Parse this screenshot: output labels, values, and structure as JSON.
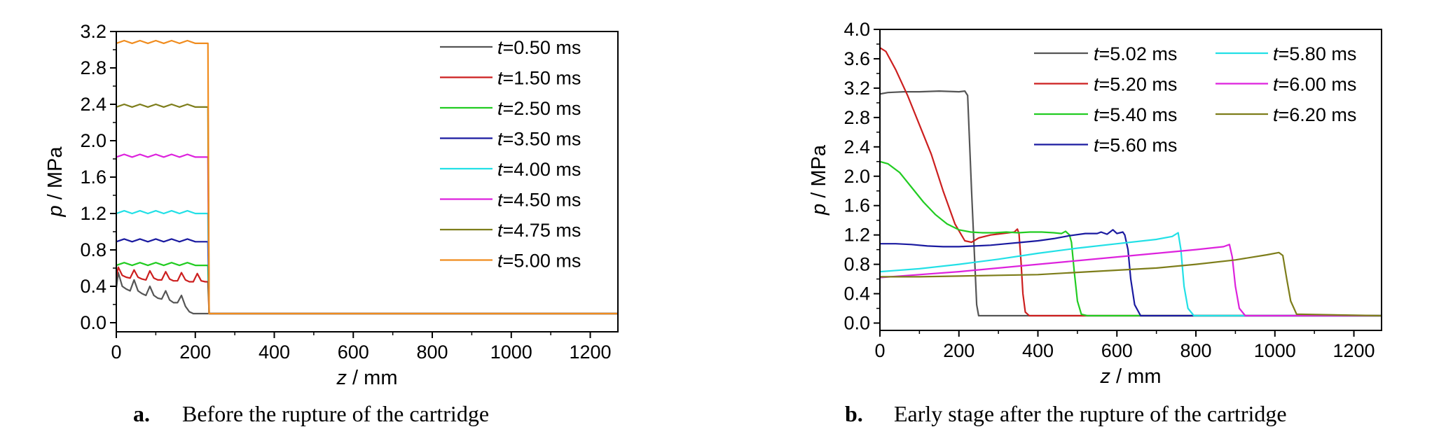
{
  "panels": [
    {
      "letter": "a.",
      "caption": "Before the rupture of the cartridge",
      "chart_data": {
        "type": "line",
        "xlabel": "z / mm",
        "ylabel": "p / MPa",
        "xlim": [
          0,
          1270
        ],
        "ylim": [
          -0.1,
          3.2
        ],
        "xticks": [
          0,
          200,
          400,
          600,
          800,
          1000,
          1200
        ],
        "yticks": [
          "0.0",
          "0.4",
          "0.8",
          "1.2",
          "1.6",
          "2.0",
          "2.4",
          "2.8",
          "3.2"
        ],
        "legend_position": "top-right",
        "legend_columns": 1,
        "series": [
          {
            "name": "t=0.50 ms",
            "color": "#555555",
            "x": [
              0,
              5,
              15,
              25,
              35,
              45,
              55,
              65,
              75,
              85,
              95,
              105,
              115,
              125,
              135,
              145,
              155,
              165,
              175,
              185,
              195,
              205,
              215,
              225,
              232,
              235,
              1270
            ],
            "y": [
              0.38,
              0.55,
              0.4,
              0.37,
              0.35,
              0.47,
              0.35,
              0.32,
              0.3,
              0.4,
              0.3,
              0.27,
              0.26,
              0.35,
              0.25,
              0.22,
              0.22,
              0.3,
              0.18,
              0.12,
              0.1,
              0.1,
              0.1,
              0.1,
              0.1,
              0.1,
              0.1
            ]
          },
          {
            "name": "t=1.50 ms",
            "color": "#cc1f1f",
            "x": [
              0,
              5,
              15,
              25,
              35,
              45,
              55,
              65,
              75,
              85,
              95,
              105,
              115,
              125,
              135,
              145,
              155,
              165,
              175,
              185,
              195,
              205,
              215,
              225,
              232,
              235,
              1270
            ],
            "y": [
              0.5,
              0.61,
              0.52,
              0.5,
              0.49,
              0.58,
              0.5,
              0.48,
              0.47,
              0.57,
              0.49,
              0.47,
              0.47,
              0.56,
              0.48,
              0.46,
              0.46,
              0.55,
              0.47,
              0.45,
              0.45,
              0.54,
              0.46,
              0.45,
              0.45,
              0.1,
              0.1
            ]
          },
          {
            "name": "t=2.50 ms",
            "color": "#22cc22",
            "x": [
              0,
              20,
              40,
              60,
              80,
              100,
              120,
              140,
              160,
              180,
              200,
              232,
              235,
              1270
            ],
            "y": [
              0.63,
              0.66,
              0.63,
              0.66,
              0.63,
              0.66,
              0.63,
              0.66,
              0.63,
              0.66,
              0.63,
              0.63,
              0.1,
              0.1
            ]
          },
          {
            "name": "t=3.50 ms",
            "color": "#1a1aa0",
            "x": [
              0,
              20,
              40,
              60,
              80,
              100,
              120,
              140,
              160,
              180,
              200,
              232,
              235,
              1270
            ],
            "y": [
              0.89,
              0.92,
              0.89,
              0.92,
              0.89,
              0.92,
              0.89,
              0.92,
              0.89,
              0.92,
              0.89,
              0.89,
              0.1,
              0.1
            ]
          },
          {
            "name": "t=4.00 ms",
            "color": "#22e0e6",
            "x": [
              0,
              20,
              40,
              60,
              80,
              100,
              120,
              140,
              160,
              180,
              200,
              232,
              235,
              1270
            ],
            "y": [
              1.2,
              1.23,
              1.2,
              1.23,
              1.2,
              1.23,
              1.2,
              1.23,
              1.2,
              1.23,
              1.2,
              1.2,
              0.1,
              0.1
            ]
          },
          {
            "name": "t=4.50 ms",
            "color": "#dd22dd",
            "x": [
              0,
              20,
              40,
              60,
              80,
              100,
              120,
              140,
              160,
              180,
              200,
              232,
              235,
              1270
            ],
            "y": [
              1.82,
              1.85,
              1.82,
              1.85,
              1.82,
              1.85,
              1.82,
              1.85,
              1.82,
              1.85,
              1.82,
              1.82,
              0.1,
              0.1
            ]
          },
          {
            "name": "t=4.75 ms",
            "color": "#7d7d1a",
            "x": [
              0,
              20,
              40,
              60,
              80,
              100,
              120,
              140,
              160,
              180,
              200,
              232,
              235,
              1270
            ],
            "y": [
              2.37,
              2.4,
              2.37,
              2.4,
              2.37,
              2.4,
              2.37,
              2.4,
              2.37,
              2.4,
              2.37,
              2.37,
              0.1,
              0.1
            ]
          },
          {
            "name": "t=5.00 ms",
            "color": "#f08c1e",
            "x": [
              0,
              20,
              40,
              60,
              80,
              100,
              120,
              140,
              160,
              180,
              200,
              232,
              235,
              1270
            ],
            "y": [
              3.07,
              3.1,
              3.07,
              3.1,
              3.07,
              3.1,
              3.07,
              3.1,
              3.07,
              3.1,
              3.07,
              3.07,
              0.1,
              0.1
            ]
          }
        ]
      }
    },
    {
      "letter": "b.",
      "caption": "Early stage after the rupture of the cartridge",
      "chart_data": {
        "type": "line",
        "xlabel": "z / mm",
        "ylabel": "p / MPa",
        "xlim": [
          0,
          1270
        ],
        "ylim": [
          -0.1,
          4.0
        ],
        "xticks": [
          0,
          200,
          400,
          600,
          800,
          1000,
          1200
        ],
        "yticks": [
          "0.0",
          "0.4",
          "0.8",
          "1.2",
          "1.6",
          "2.0",
          "2.4",
          "2.8",
          "3.2",
          "3.6",
          "4.0"
        ],
        "legend_position": "top-right",
        "legend_columns": 2,
        "series": [
          {
            "name": "t=5.02 ms",
            "color": "#555555",
            "x": [
              0,
              20,
              60,
              100,
              150,
              200,
              215,
              222,
              232,
              245,
              250,
              1270
            ],
            "y": [
              3.12,
              3.14,
              3.15,
              3.15,
              3.16,
              3.15,
              3.16,
              3.1,
              1.8,
              0.25,
              0.1,
              0.1
            ]
          },
          {
            "name": "t=5.20 ms",
            "color": "#cc1f1f",
            "x": [
              0,
              15,
              40,
              70,
              100,
              130,
              160,
              190,
              215,
              232,
              250,
              280,
              310,
              340,
              348,
              352,
              357,
              362,
              368,
              378,
              390,
              1270
            ],
            "y": [
              3.75,
              3.7,
              3.45,
              3.1,
              2.7,
              2.3,
              1.8,
              1.35,
              1.12,
              1.1,
              1.16,
              1.2,
              1.22,
              1.24,
              1.28,
              1.22,
              0.85,
              0.4,
              0.15,
              0.1,
              0.1,
              0.1
            ]
          },
          {
            "name": "t=5.40 ms",
            "color": "#22cc22",
            "x": [
              0,
              20,
              50,
              80,
              110,
              140,
              170,
              200,
              230,
              260,
              290,
              320,
              350,
              380,
              410,
              440,
              460,
              470,
              480,
              485,
              492,
              500,
              510,
              525,
              1270
            ],
            "y": [
              2.2,
              2.17,
              2.05,
              1.85,
              1.65,
              1.48,
              1.35,
              1.27,
              1.24,
              1.23,
              1.23,
              1.24,
              1.23,
              1.24,
              1.24,
              1.23,
              1.22,
              1.25,
              1.2,
              1.1,
              0.7,
              0.3,
              0.12,
              0.1,
              0.1
            ]
          },
          {
            "name": "t=5.60 ms",
            "color": "#1a1aa0",
            "x": [
              0,
              40,
              80,
              120,
              160,
              200,
              240,
              280,
              320,
              360,
              400,
              440,
              480,
              520,
              550,
              560,
              575,
              590,
              600,
              615,
              620,
              628,
              635,
              645,
              660,
              1270
            ],
            "y": [
              1.08,
              1.08,
              1.07,
              1.05,
              1.04,
              1.04,
              1.05,
              1.06,
              1.08,
              1.1,
              1.12,
              1.15,
              1.19,
              1.22,
              1.22,
              1.24,
              1.21,
              1.27,
              1.22,
              1.24,
              1.2,
              1.0,
              0.6,
              0.25,
              0.1,
              0.1
            ]
          },
          {
            "name": "t=5.80 ms",
            "color": "#22e0e6",
            "x": [
              0,
              100,
              200,
              300,
              400,
              500,
              600,
              700,
              740,
              755,
              762,
              770,
              780,
              795,
              1270
            ],
            "y": [
              0.7,
              0.74,
              0.8,
              0.87,
              0.95,
              1.02,
              1.08,
              1.14,
              1.18,
              1.23,
              1.0,
              0.5,
              0.2,
              0.1,
              0.1
            ]
          },
          {
            "name": "t=6.00 ms",
            "color": "#dd22dd",
            "x": [
              0,
              100,
              200,
              300,
              400,
              500,
              600,
              700,
              800,
              870,
              885,
              892,
              900,
              910,
              925,
              1270
            ],
            "y": [
              0.62,
              0.66,
              0.7,
              0.75,
              0.8,
              0.85,
              0.9,
              0.95,
              1.0,
              1.04,
              1.07,
              0.9,
              0.5,
              0.2,
              0.1,
              0.1
            ]
          },
          {
            "name": "t=6.20 ms",
            "color": "#7d7d1a",
            "x": [
              0,
              100,
              200,
              300,
              400,
              500,
              600,
              700,
              800,
              900,
              980,
              1010,
              1020,
              1030,
              1040,
              1055,
              1270
            ],
            "y": [
              0.63,
              0.63,
              0.64,
              0.65,
              0.66,
              0.69,
              0.72,
              0.75,
              0.8,
              0.86,
              0.93,
              0.96,
              0.92,
              0.6,
              0.3,
              0.12,
              0.1
            ]
          }
        ]
      }
    }
  ]
}
